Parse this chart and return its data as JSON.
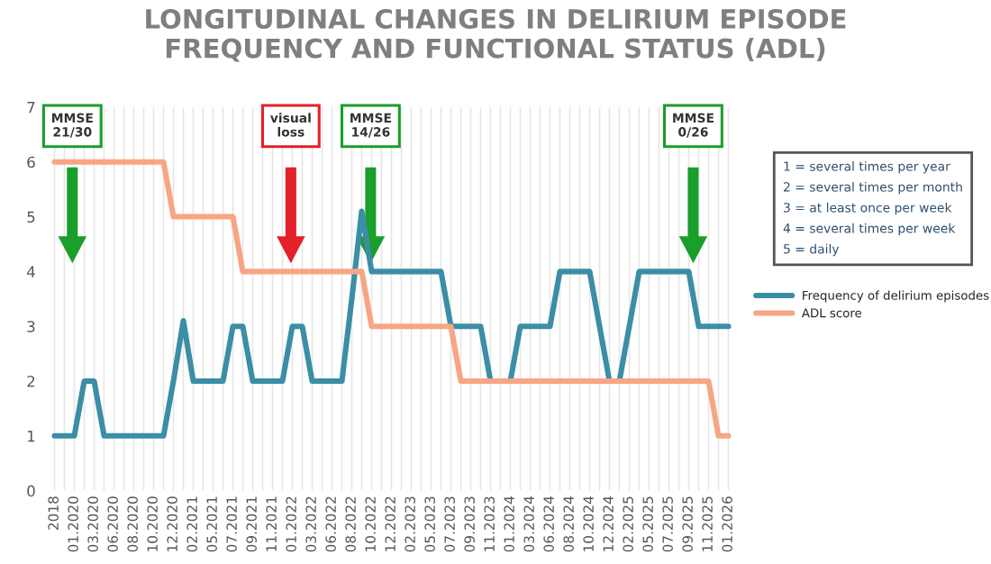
{
  "chart_data": {
    "type": "line",
    "title": "LONGITUDINAL CHANGES IN DELIRIUM EPISODE\nFREQUENCY AND FUNCTIONAL STATUS (ADL)",
    "categories": [
      "2018",
      null,
      "01.2020",
      null,
      "03.2020",
      null,
      "06.2020",
      null,
      "08.2020",
      null,
      "10.2020",
      null,
      "12.2020",
      null,
      "02.2021",
      null,
      "05.2021",
      null,
      "07.2021",
      null,
      "09.2021",
      null,
      "11.2021",
      null,
      "01.2022",
      null,
      "03.2022",
      null,
      "06.2022",
      null,
      "08.2022",
      null,
      "10.2022",
      null,
      "12.2022",
      null,
      "02.2023",
      null,
      "05.2023",
      null,
      "07.2023",
      null,
      "09.2023",
      null,
      "11.2023",
      null,
      "01.2024",
      null,
      "03.2024",
      null,
      "06.2024",
      null,
      "08.2024",
      null,
      "10.2024",
      null,
      "12.2024",
      null,
      "02.2025",
      null,
      "05.2025",
      null,
      "07.2025",
      null,
      "09.2025",
      null,
      "11.2025",
      null,
      "01.2026"
    ],
    "series": [
      {
        "name": "Frequency of delirium episodes",
        "color": "#3b8ea5",
        "values": [
          1,
          1,
          1,
          2,
          2,
          1,
          1,
          1,
          1,
          1,
          1,
          1,
          2,
          3.1,
          2,
          2,
          2,
          2,
          3,
          3,
          2,
          2,
          2,
          2,
          3,
          3,
          2,
          2,
          2,
          2,
          3.5,
          5.1,
          4,
          4,
          4,
          4,
          4,
          4,
          4,
          4,
          3,
          3,
          3,
          3,
          2,
          2,
          2,
          3,
          3,
          3,
          3,
          4,
          4,
          4,
          4,
          3,
          2,
          2,
          3,
          4,
          4,
          4,
          4,
          4,
          4,
          3,
          3,
          3,
          3
        ]
      },
      {
        "name": "ADL score",
        "color": "#f7a584",
        "values": [
          6,
          6,
          6,
          6,
          6,
          6,
          6,
          6,
          6,
          6,
          6,
          6,
          5,
          5,
          5,
          5,
          5,
          5,
          5,
          4,
          4,
          4,
          4,
          4,
          4,
          4,
          4,
          4,
          4,
          4,
          4,
          4,
          3,
          3,
          3,
          3,
          3,
          3,
          3,
          3,
          3,
          2,
          2,
          2,
          2,
          2,
          2,
          2,
          2,
          2,
          2,
          2,
          2,
          2,
          2,
          2,
          2,
          2,
          2,
          2,
          2,
          2,
          2,
          2,
          2,
          2,
          2,
          1,
          1
        ]
      }
    ],
    "ylim": [
      0,
      7
    ],
    "yticks": [
      0,
      1,
      2,
      3,
      4,
      5,
      6,
      7
    ],
    "grid": "x",
    "legend": "right",
    "marker": "none",
    "line_style": "solid",
    "annotations": [
      "MMSE\n21/30",
      "visual\nloss",
      "MMSE\n14/26",
      "MMSE\n0/26",
      "1 = several times per year\n2 = several times per month\n3 = at least once per week\n4 = several times per week\n5 = daily"
    ]
  }
}
